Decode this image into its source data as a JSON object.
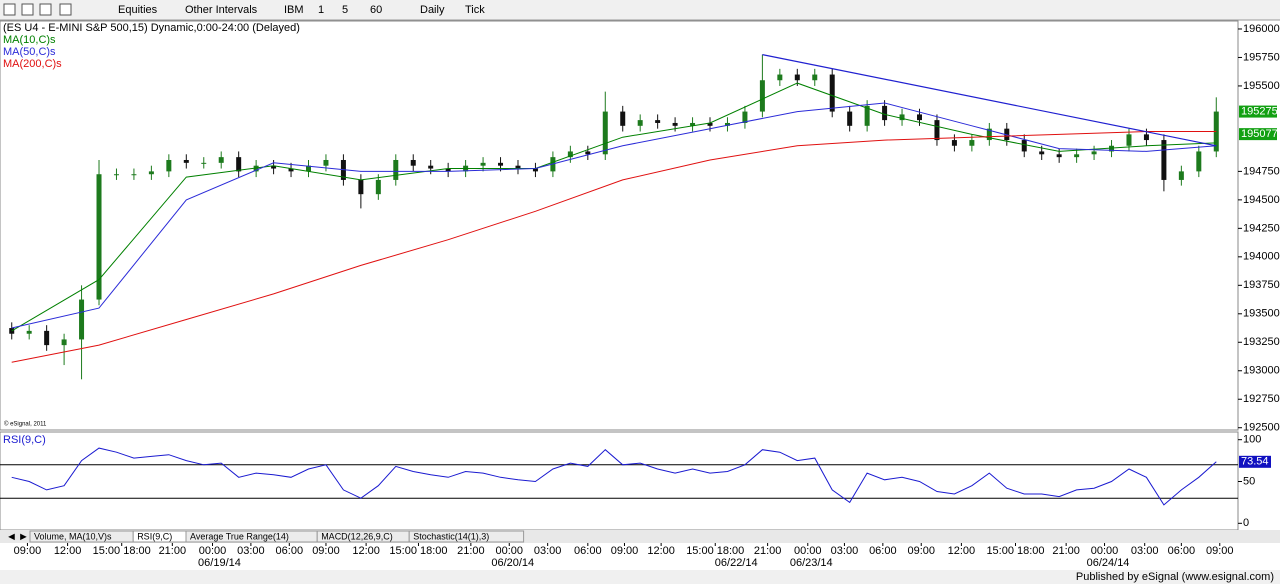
{
  "toolbar": {
    "items": [
      "Equities",
      "Other Intervals",
      "IBM",
      "1",
      "5",
      "60",
      "Daily",
      "Tick"
    ]
  },
  "chart_data": [
    {
      "type": "candlestick",
      "title": "(ES U4 - E-MINI S&P 500,15) Dynamic,0:00-24:00 (Delayed)",
      "copyright": "© eSignal, 2011",
      "up_color": "#1d7a1d",
      "down_color": "#111111",
      "xlim": [
        -0.5,
        69.5
      ],
      "ylim": [
        1924.8,
        1960.7
      ],
      "yticks": [
        {
          "value": 1925,
          "label": "192500"
        },
        {
          "value": 1927.5,
          "label": "192750"
        },
        {
          "value": 1930,
          "label": "193000"
        },
        {
          "value": 1932.5,
          "label": "193250"
        },
        {
          "value": 1935,
          "label": "193500"
        },
        {
          "value": 1937.5,
          "label": "193750"
        },
        {
          "value": 1940,
          "label": "194000"
        },
        {
          "value": 1942.5,
          "label": "194250"
        },
        {
          "value": 1945,
          "label": "194500"
        },
        {
          "value": 1947.5,
          "label": "194750"
        },
        {
          "value": 1955,
          "label": "195500"
        },
        {
          "value": 1957.5,
          "label": "195750"
        },
        {
          "value": 1960,
          "label": "196000"
        }
      ],
      "xticks": [
        {
          "value": 0.9,
          "label": "09:00"
        },
        {
          "value": 3.2,
          "label": "12:00"
        },
        {
          "value": 6.3,
          "label": "15:00 18:00"
        },
        {
          "value": 9.2,
          "label": "21:00"
        },
        {
          "value": 11.5,
          "label": "00:00"
        },
        {
          "value": 13.7,
          "label": "03:00"
        },
        {
          "value": 15.9,
          "label": "06:00"
        },
        {
          "value": 18.0,
          "label": "09:00"
        },
        {
          "value": 20.3,
          "label": "12:00"
        },
        {
          "value": 23.3,
          "label": "15:00 18:00"
        },
        {
          "value": 26.3,
          "label": "21:00"
        },
        {
          "value": 28.5,
          "label": "00:00"
        },
        {
          "value": 30.7,
          "label": "03:00"
        },
        {
          "value": 33.0,
          "label": "06:00"
        },
        {
          "value": 35.1,
          "label": "09:00"
        },
        {
          "value": 37.2,
          "label": "12:00"
        },
        {
          "value": 40.3,
          "label": "15:00 18:00"
        },
        {
          "value": 43.3,
          "label": "21:00"
        },
        {
          "value": 45.6,
          "label": "00:00"
        },
        {
          "value": 47.7,
          "label": "03:00"
        },
        {
          "value": 49.9,
          "label": "06:00"
        },
        {
          "value": 52.1,
          "label": "09:00"
        },
        {
          "value": 54.4,
          "label": "12:00"
        },
        {
          "value": 57.5,
          "label": "15:00 18:00"
        },
        {
          "value": 60.4,
          "label": "21:00"
        },
        {
          "value": 62.6,
          "label": "00:00"
        },
        {
          "value": 64.9,
          "label": "03:00"
        },
        {
          "value": 67.0,
          "label": "06:00"
        },
        {
          "value": 69.2,
          "label": "09:00"
        }
      ],
      "date_ticks": [
        {
          "value": 11.9,
          "label": "06/19/14"
        },
        {
          "value": 28.7,
          "label": "06/20/14"
        },
        {
          "value": 41.5,
          "label": "06/22/14"
        },
        {
          "value": 45.8,
          "label": "06/23/14"
        },
        {
          "value": 62.8,
          "label": "06/24/14"
        }
      ],
      "open": [
        1933.75,
        1933.25,
        1933.5,
        1932.25,
        1932.75,
        1936.25,
        1947.25,
        1947.25,
        1947.25,
        1947.5,
        1948.5,
        1948.25,
        1948.25,
        1948.75,
        1947.5,
        1948,
        1947.75,
        1947.5,
        1948,
        1948.5,
        1946.75,
        1945.5,
        1946.75,
        1948.5,
        1948,
        1947.75,
        1947.5,
        1948,
        1948.25,
        1948,
        1947.75,
        1947.5,
        1948.75,
        1949.25,
        1949,
        1952.75,
        1951.5,
        1952,
        1951.75,
        1951.5,
        1951.75,
        1951.5,
        1951.75,
        1952.75,
        1955.5,
        1956,
        1955.5,
        1956,
        1952.75,
        1951.5,
        1953.25,
        1952,
        1952.5,
        1952,
        1950.25,
        1949.75,
        1950.25,
        1951.25,
        1950.25,
        1949.25,
        1949,
        1948.75,
        1949,
        1949.25,
        1949.75,
        1950.75,
        1950.25,
        1946.75,
        1947.5,
        1949.25
      ],
      "high": [
        1934.25,
        1934,
        1934,
        1933.25,
        1937.5,
        1948.5,
        1947.75,
        1947.75,
        1948,
        1949,
        1949,
        1948.75,
        1949.25,
        1949.25,
        1948.5,
        1948.5,
        1948.25,
        1948.5,
        1949,
        1949,
        1947.25,
        1947.25,
        1949,
        1949,
        1948.5,
        1948.25,
        1948.5,
        1948.75,
        1948.75,
        1948.5,
        1948.25,
        1949.25,
        1949.75,
        1949.75,
        1954.5,
        1953.25,
        1952.5,
        1952.5,
        1952.25,
        1952.25,
        1952.25,
        1952.25,
        1953.25,
        1957.75,
        1956.5,
        1956.5,
        1956.5,
        1956.5,
        1953.25,
        1953.75,
        1953.75,
        1953,
        1953,
        1952.5,
        1950.75,
        1950.75,
        1951.75,
        1951.75,
        1950.75,
        1949.75,
        1949.5,
        1949.5,
        1949.75,
        1950.25,
        1951.25,
        1951.25,
        1950.75,
        1948,
        1949.75,
        1954
      ],
      "low": [
        1932.75,
        1932.75,
        1931.75,
        1930.5,
        1929.25,
        1935.75,
        1946.75,
        1946.75,
        1946.75,
        1947,
        1947.75,
        1947.75,
        1947.75,
        1947,
        1947,
        1947.25,
        1947,
        1947,
        1947.5,
        1946.25,
        1944.25,
        1945,
        1946.25,
        1947.5,
        1947.25,
        1947,
        1947,
        1947.5,
        1947.5,
        1947.25,
        1947,
        1947,
        1948.25,
        1948.5,
        1948.5,
        1951,
        1951,
        1951.25,
        1951,
        1951,
        1951,
        1951,
        1951.25,
        1952.25,
        1955,
        1955,
        1955,
        1952.25,
        1951,
        1951,
        1951.5,
        1951.5,
        1951.5,
        1949.75,
        1949.25,
        1949.25,
        1949.75,
        1949.75,
        1948.75,
        1948.5,
        1948.25,
        1948.25,
        1948.5,
        1948.75,
        1949.25,
        1949.75,
        1945.75,
        1946.25,
        1947,
        1948.75
      ],
      "close": [
        1933.25,
        1933.5,
        1932.25,
        1932.75,
        1936.25,
        1947.25,
        1947.25,
        1947.25,
        1947.5,
        1948.5,
        1948.25,
        1948.25,
        1948.75,
        1947.5,
        1948,
        1947.75,
        1947.5,
        1948,
        1948.5,
        1946.75,
        1945.5,
        1946.75,
        1948.5,
        1948,
        1947.75,
        1947.5,
        1948,
        1948.25,
        1948,
        1947.75,
        1947.5,
        1948.75,
        1949.25,
        1949,
        1952.75,
        1951.5,
        1952,
        1951.75,
        1951.5,
        1951.75,
        1951.5,
        1951.75,
        1952.75,
        1955.5,
        1956,
        1955.5,
        1956,
        1952.75,
        1951.5,
        1953.25,
        1952,
        1952.5,
        1952,
        1950.25,
        1949.75,
        1950.25,
        1951.25,
        1950.25,
        1949.25,
        1949,
        1948.75,
        1949,
        1949.25,
        1949.75,
        1950.75,
        1950.25,
        1946.75,
        1947.5,
        1949.25,
        1952.75
      ],
      "series": [
        {
          "name": "MA(10,C)s",
          "color": "#008000",
          "x": [
            0,
            5,
            10,
            15,
            20,
            25,
            30,
            35,
            40,
            45,
            50,
            55,
            60,
            65,
            69
          ],
          "values": [
            1933.5,
            1938,
            1947,
            1948,
            1946.75,
            1947.75,
            1947.75,
            1950.5,
            1951.75,
            1955.25,
            1952.5,
            1950.75,
            1949.25,
            1949.75,
            1950
          ]
        },
        {
          "name": "MA(50,C)s",
          "color": "#2b2bd8",
          "x": [
            0,
            5,
            10,
            15,
            20,
            25,
            30,
            35,
            40,
            45,
            50,
            55,
            60,
            65,
            69
          ],
          "values": [
            1933.75,
            1935.5,
            1945,
            1948.25,
            1947.5,
            1947.5,
            1947.75,
            1949.75,
            1951.25,
            1952.75,
            1953.5,
            1951.5,
            1949.5,
            1949.25,
            1949.75
          ]
        },
        {
          "name": "MA(200,C)s",
          "color": "#e01010",
          "x": [
            0,
            5,
            10,
            15,
            20,
            25,
            30,
            35,
            40,
            45,
            50,
            55,
            60,
            65,
            69
          ],
          "values": [
            1930.75,
            1932.25,
            1934.5,
            1936.75,
            1939.25,
            1941.5,
            1944,
            1946.75,
            1948.5,
            1949.75,
            1950.25,
            1950.5,
            1950.75,
            1951,
            1951
          ]
        }
      ],
      "trendline": {
        "color": "#2020d0",
        "x": [
          43,
          69
        ],
        "values": [
          1957.75,
          1949.75
        ]
      },
      "price_tags": [
        {
          "value": 1952.75,
          "label": "195275"
        },
        {
          "value": 1950.77,
          "label": "195077"
        }
      ]
    },
    {
      "type": "line",
      "title": "RSI(9,C)",
      "color": "#1a1ad0",
      "xlim": [
        -0.5,
        69.5
      ],
      "ylim": [
        -8,
        108
      ],
      "yticks": [
        0,
        50,
        100
      ],
      "levels": [
        30,
        70
      ],
      "values": [
        55,
        50,
        40,
        45,
        75,
        90,
        85,
        78,
        80,
        82,
        75,
        70,
        72,
        55,
        60,
        58,
        55,
        65,
        70,
        40,
        30,
        45,
        68,
        62,
        58,
        55,
        62,
        60,
        55,
        52,
        50,
        65,
        72,
        68,
        88,
        70,
        72,
        65,
        60,
        65,
        60,
        62,
        70,
        88,
        85,
        75,
        78,
        40,
        25,
        60,
        52,
        55,
        50,
        38,
        35,
        45,
        60,
        42,
        35,
        35,
        32,
        40,
        42,
        50,
        65,
        55,
        22,
        40,
        55,
        73.54
      ]
    }
  ],
  "tabs": [
    "Volume, MA(10,V)s",
    "RSI(9,C)",
    "Average True Range(14)",
    "MACD(12,26,9,C)",
    "Stochastic(14(1),3)"
  ],
  "footer": "Published by eSignal (www.esignal.com)"
}
